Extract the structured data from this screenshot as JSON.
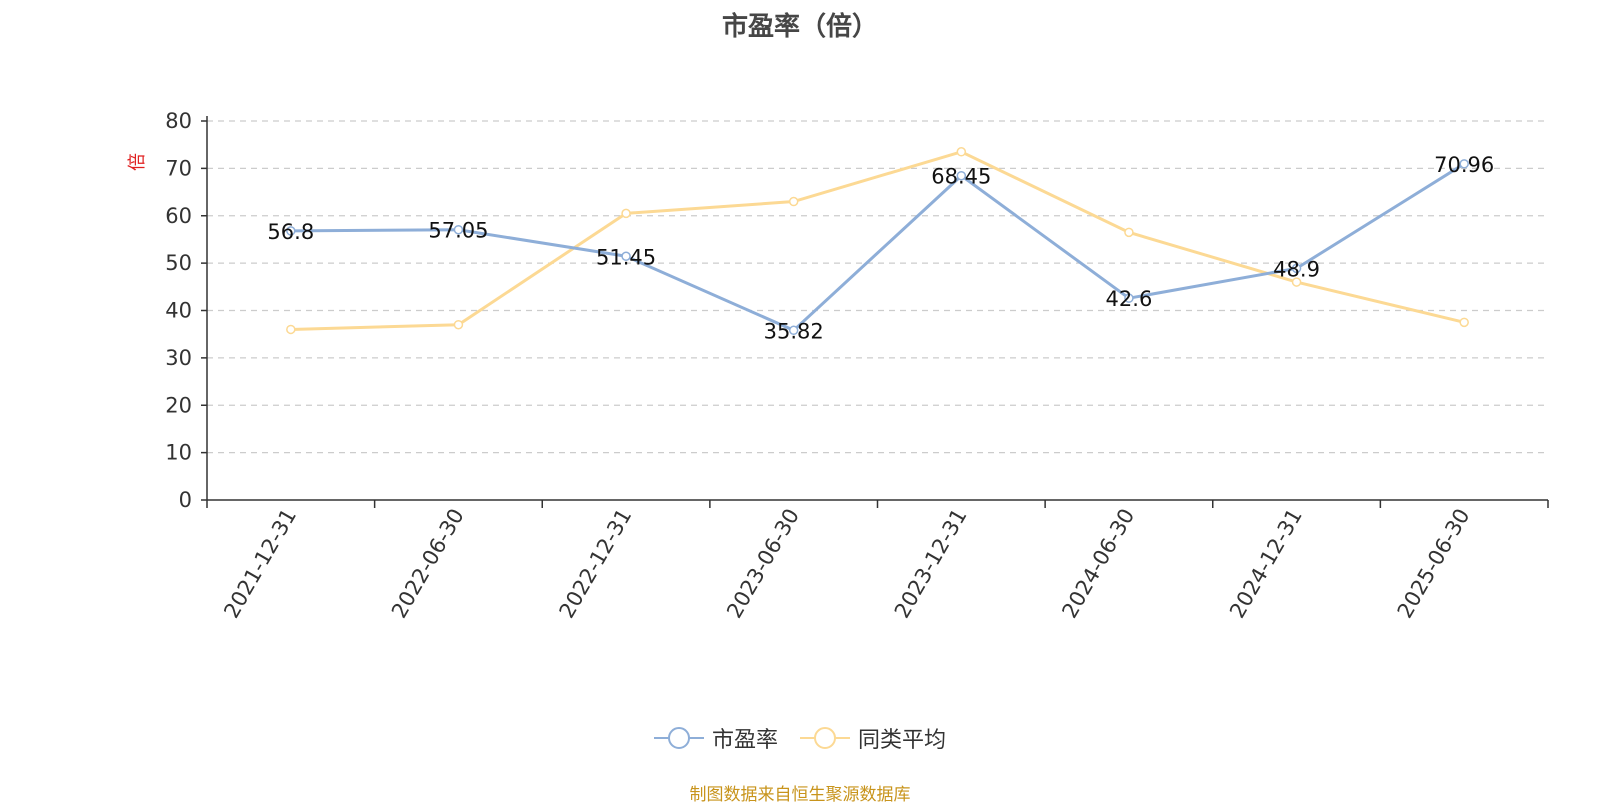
{
  "chart_data": {
    "type": "line",
    "title": "市盈率（倍）",
    "ylabel": "倍",
    "xlabel": "",
    "categories": [
      "2021-12-31",
      "2022-06-30",
      "2022-12-31",
      "2023-06-30",
      "2023-12-31",
      "2024-06-30",
      "2024-12-31",
      "2025-06-30"
    ],
    "ylim": [
      0,
      80
    ],
    "yticks": [
      0,
      10,
      20,
      30,
      40,
      50,
      60,
      70,
      80
    ],
    "grid": true,
    "legend_position": "bottom",
    "series": [
      {
        "name": "市盈率",
        "color": "#8eaed8",
        "values": [
          56.8,
          57.05,
          51.45,
          35.82,
          68.45,
          42.6,
          48.9,
          70.96
        ],
        "labels": [
          "56.8",
          "57.05",
          "51.45",
          "35.82",
          "68.45",
          "42.6",
          "48.9",
          "70.96"
        ]
      },
      {
        "name": "同类平均",
        "color": "#fcd994",
        "values": [
          36.0,
          37.0,
          60.5,
          63.0,
          73.5,
          56.5,
          46.0,
          37.5
        ]
      }
    ]
  },
  "source_text": "制图数据来自恒生聚源数据库",
  "colors": {
    "axis": "#333333",
    "grid": "#cccccc",
    "ylabel": "#e02020",
    "title": "#464646",
    "source": "#c8941c"
  }
}
